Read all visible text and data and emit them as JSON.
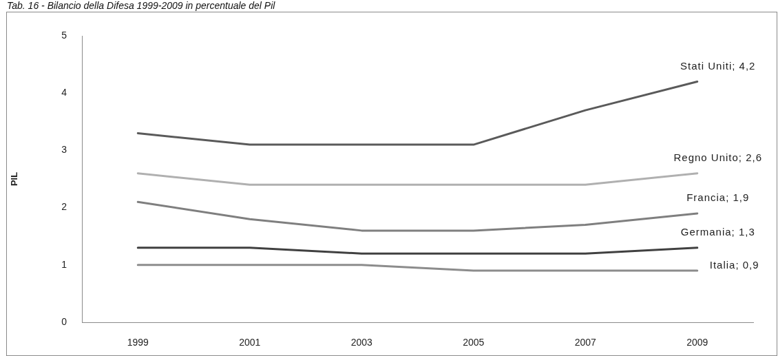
{
  "chart_data": {
    "type": "line",
    "title": "Tab. 16 - Bilancio della Difesa 1999-2009 in percentuale del Pil",
    "ylabel": "PIL",
    "categories": [
      "1999",
      "2001",
      "2003",
      "2005",
      "2007",
      "2009"
    ],
    "series": [
      {
        "color": "#5a5a5a",
        "values": [
          3.3,
          3.1,
          3.1,
          3.1,
          3.7,
          4.2
        ]
      },
      {
        "color": "#b0b0b0",
        "values": [
          2.6,
          2.4,
          2.4,
          2.4,
          2.4,
          2.6
        ]
      },
      {
        "color": "#7f7f7f",
        "values": [
          2.1,
          1.8,
          1.6,
          1.6,
          1.7,
          1.9
        ]
      },
      {
        "color": "#404040",
        "values": [
          1.3,
          1.3,
          1.2,
          1.2,
          1.2,
          1.3
        ]
      },
      {
        "color": "#8c8c8c",
        "values": [
          1.0,
          1.0,
          1.0,
          0.9,
          0.9,
          0.9
        ]
      }
    ],
    "annotations": [
      {
        "text": "Stati Uniti; 4,2",
        "x": "2009",
        "y": 4.2
      },
      {
        "text": "Regno Unito; 2,6",
        "x": "2009",
        "y": 2.6
      },
      {
        "text": "Francia; 1,9",
        "x": "2009",
        "y": 1.9
      },
      {
        "text": "Germania; 1,3",
        "x": "2009",
        "y": 1.3
      },
      {
        "text": "Italia; 0,9",
        "x": "2009",
        "y": 0.9
      }
    ],
    "ylim": [
      0,
      5
    ],
    "yticks": [
      0,
      1,
      2,
      3,
      4,
      5
    ],
    "legend": false,
    "grid": false,
    "marker": "none"
  }
}
